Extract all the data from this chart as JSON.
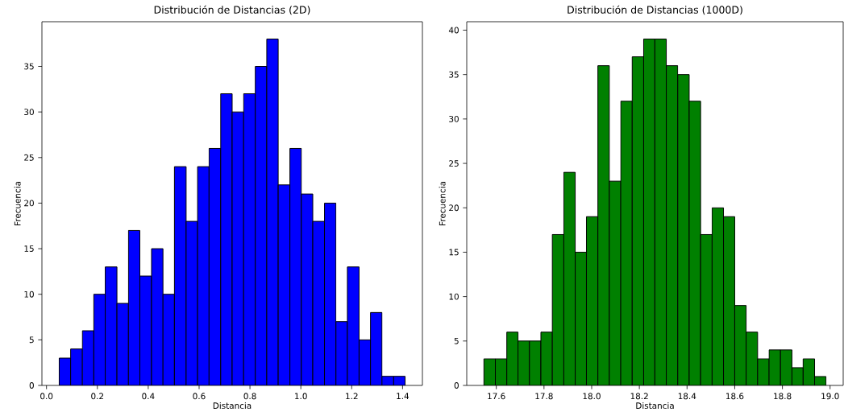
{
  "chart_data": [
    {
      "type": "histogram",
      "title": "Distribución de Distancias (2D)",
      "xlabel": "Distancia",
      "ylabel": "Frecuencia",
      "color": "#0000ff",
      "bins": [
        0.05,
        0.095,
        0.141,
        0.186,
        0.231,
        0.277,
        0.322,
        0.367,
        0.413,
        0.458,
        0.503,
        0.549,
        0.594,
        0.639,
        0.685,
        0.73,
        0.775,
        0.821,
        0.866,
        0.911,
        0.957,
        1.002,
        1.047,
        1.093,
        1.138,
        1.183,
        1.229,
        1.274,
        1.319,
        1.365,
        1.41
      ],
      "values": [
        3,
        4,
        6,
        10,
        13,
        9,
        17,
        12,
        15,
        10,
        24,
        18,
        24,
        26,
        32,
        30,
        32,
        35,
        38,
        22,
        26,
        21,
        18,
        20,
        7,
        13,
        5,
        8,
        1,
        1
      ],
      "xlim": [
        -0.018,
        1.478
      ],
      "ylim": [
        0,
        39.9
      ],
      "xticks": [
        {
          "value": 0.0,
          "label": "0.0"
        },
        0.2,
        0.4,
        0.6,
        0.8,
        {
          "value": 1.0,
          "label": "1.0"
        },
        1.2,
        1.4
      ],
      "yticks": [
        0,
        5,
        10,
        15,
        20,
        25,
        30,
        35
      ]
    },
    {
      "type": "histogram",
      "title": "Distribución de Distancias (1000D)",
      "xlabel": "Distancia",
      "ylabel": "Frecuencia",
      "color": "#008000",
      "bins": [
        17.548,
        17.596,
        17.644,
        17.691,
        17.739,
        17.787,
        17.835,
        17.883,
        17.931,
        17.978,
        18.026,
        18.074,
        18.122,
        18.17,
        18.218,
        18.265,
        18.313,
        18.361,
        18.409,
        18.457,
        18.505,
        18.553,
        18.6,
        18.648,
        18.696,
        18.744,
        18.792,
        18.84,
        18.887,
        18.935,
        18.983
      ],
      "values": [
        3,
        3,
        6,
        5,
        5,
        6,
        17,
        24,
        15,
        19,
        36,
        23,
        32,
        37,
        39,
        39,
        36,
        35,
        32,
        17,
        20,
        19,
        9,
        6,
        3,
        4,
        4,
        2,
        3,
        1
      ],
      "xlim": [
        17.476,
        19.055
      ],
      "ylim": [
        0,
        40.95
      ],
      "xticks": [
        17.6,
        17.8,
        {
          "value": 18.0,
          "label": "18.0"
        },
        18.2,
        18.4,
        18.6,
        18.8,
        {
          "value": 19.0,
          "label": "19.0"
        }
      ],
      "yticks": [
        0,
        5,
        10,
        15,
        20,
        25,
        30,
        35,
        40
      ]
    }
  ]
}
